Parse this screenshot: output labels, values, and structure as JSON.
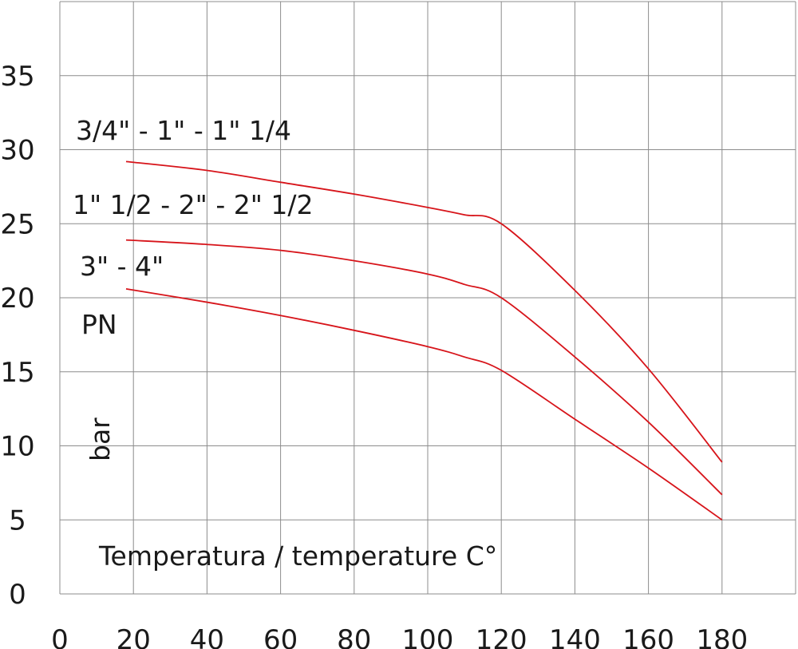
{
  "chart_data": {
    "type": "line",
    "title": "",
    "xlabel": "Temperatura / temperature C°",
    "ylabel": "PN",
    "yunit": "bar",
    "xlim": [
      0,
      200
    ],
    "ylim": [
      0,
      40
    ],
    "xticks": [
      0,
      20,
      40,
      60,
      80,
      100,
      120,
      140,
      160,
      180
    ],
    "yticks": [
      0,
      5,
      10,
      15,
      20,
      25,
      30,
      35
    ],
    "grid": true,
    "line_color": "#d7141a",
    "grid_color": "#8c8c8c",
    "series": [
      {
        "name": "3/4\" - 1\" - 1\" 1/4",
        "x": [
          18,
          40,
          60,
          80,
          100,
          110,
          120,
          140,
          160,
          180
        ],
        "y": [
          29.2,
          28.6,
          27.8,
          27.0,
          26.1,
          25.6,
          25.0,
          20.5,
          15.2,
          8.9
        ]
      },
      {
        "name": "1\" 1/2 - 2\" - 2\" 1/2",
        "x": [
          18,
          40,
          60,
          80,
          100,
          110,
          120,
          140,
          160,
          180
        ],
        "y": [
          23.9,
          23.6,
          23.2,
          22.5,
          21.6,
          20.9,
          20.0,
          16.0,
          11.6,
          6.7
        ]
      },
      {
        "name": "3\" - 4\"",
        "x": [
          18,
          40,
          60,
          80,
          100,
          110,
          120,
          140,
          160,
          180
        ],
        "y": [
          20.6,
          19.7,
          18.8,
          17.8,
          16.7,
          16.0,
          15.1,
          11.8,
          8.5,
          5.0
        ]
      }
    ]
  }
}
